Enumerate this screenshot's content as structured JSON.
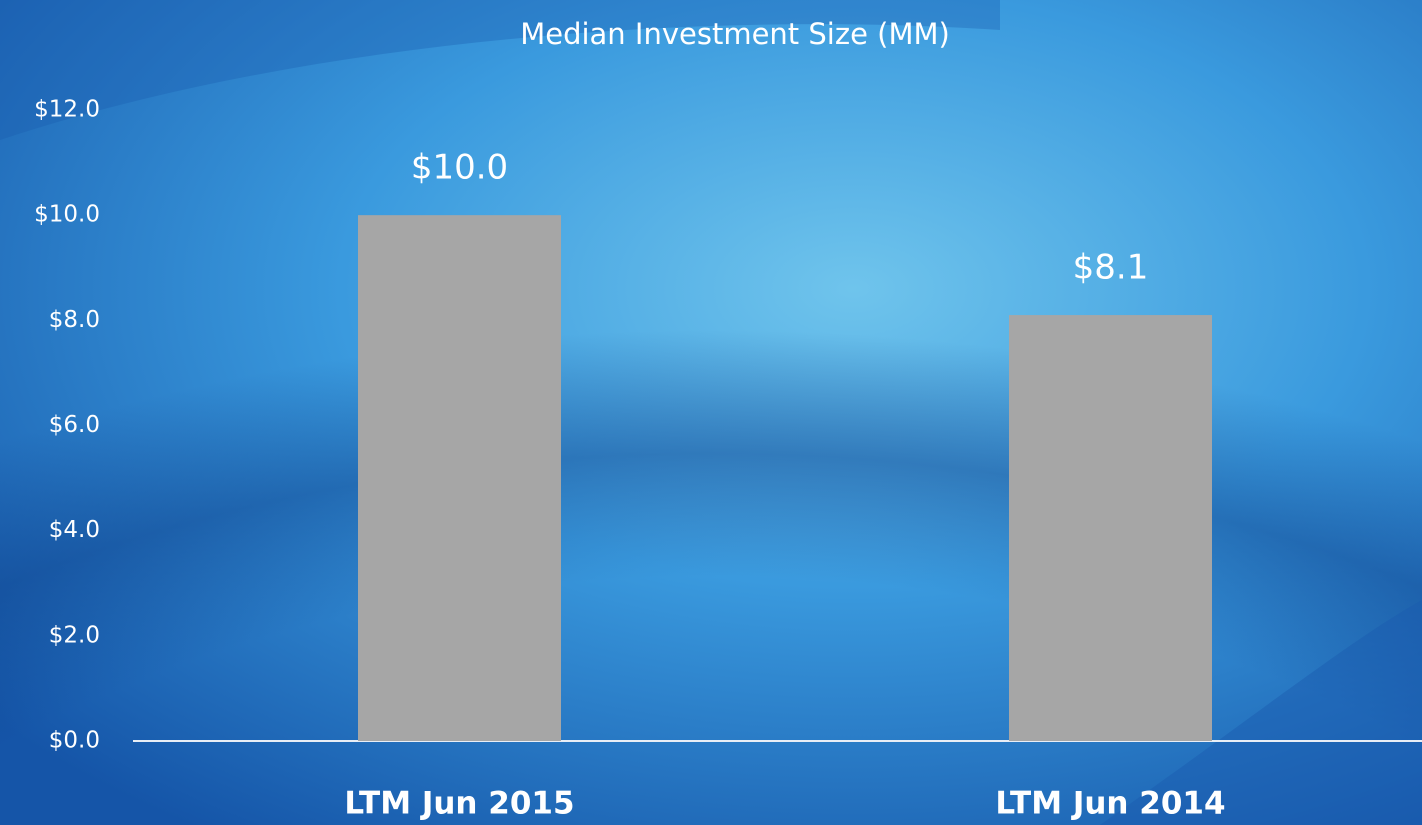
{
  "chart_data": {
    "type": "bar",
    "title": "Median Investment Size (MM)",
    "categories": [
      "LTM Jun 2015",
      "LTM Jun 2014"
    ],
    "values": [
      10.0,
      8.1
    ],
    "value_labels": [
      "$10.0",
      "$8.1"
    ],
    "color": "#a6a6a6",
    "ylim": [
      0,
      12
    ],
    "yticks": [
      {
        "value": 0,
        "label": "$0.0"
      },
      {
        "value": 2,
        "label": "$2.0"
      },
      {
        "value": 4,
        "label": "$4.0"
      },
      {
        "value": 6,
        "label": "$6.0"
      },
      {
        "value": 8,
        "label": "$8.0"
      },
      {
        "value": 10,
        "label": "$10.0"
      },
      {
        "value": 12,
        "label": "$12.0"
      }
    ],
    "grid": false
  }
}
